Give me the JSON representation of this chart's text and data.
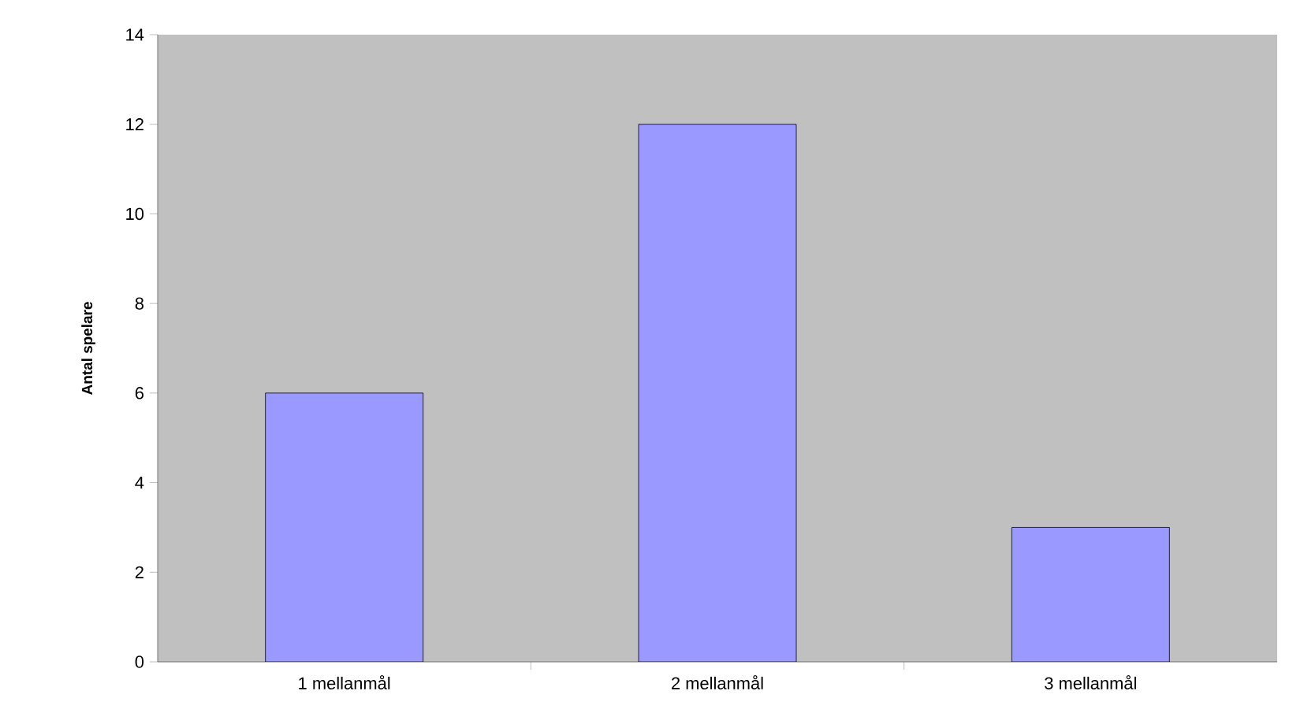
{
  "chart_data": {
    "type": "bar",
    "ylabel": "Antal spelare",
    "categories": [
      "1 mellanmål",
      "2 mellanmål",
      "3 mellanmål"
    ],
    "values": [
      6,
      12,
      3
    ],
    "color": "#9999ff",
    "ylim": [
      0,
      14
    ],
    "yticks": [
      0,
      2,
      4,
      6,
      8,
      10,
      12,
      14
    ]
  }
}
